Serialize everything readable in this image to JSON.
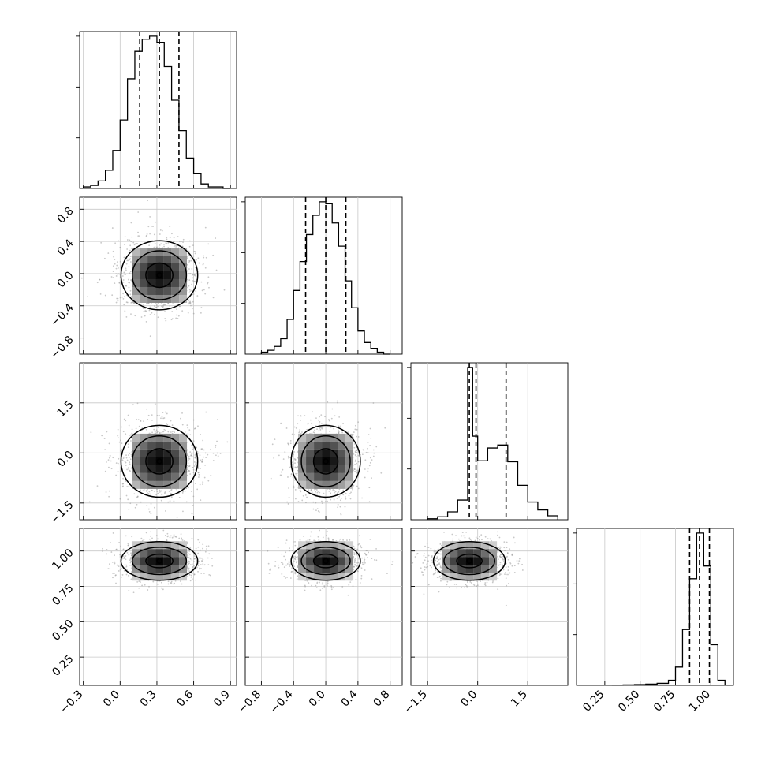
{
  "chart_data": {
    "type": "corner",
    "title": "",
    "grid": true,
    "parameters": [
      {
        "index": 0,
        "range": [
          -0.33,
          0.95
        ],
        "ticks": [
          -0.3,
          0.0,
          0.3,
          0.6,
          0.9
        ],
        "tick_labels": [
          "−0.3",
          "0.0",
          "0.3",
          "0.6",
          "0.9"
        ],
        "quantiles": [
          0.16,
          0.32,
          0.48
        ],
        "hist": {
          "edges": [
            -0.3,
            -0.24,
            -0.18,
            -0.12,
            -0.06,
            0.0,
            0.06,
            0.12,
            0.18,
            0.24,
            0.3,
            0.36,
            0.42,
            0.48,
            0.54,
            0.6,
            0.66,
            0.72,
            0.78,
            0.84,
            0.9
          ],
          "counts": [
            1,
            2,
            5,
            12,
            25,
            45,
            72,
            90,
            98,
            100,
            96,
            80,
            58,
            38,
            20,
            10,
            3,
            1,
            1,
            0
          ]
        }
      },
      {
        "index": 1,
        "range": [
          -1.0,
          0.95
        ],
        "ticks": [
          -0.8,
          -0.4,
          0.0,
          0.4,
          0.8
        ],
        "tick_labels": [
          "−0.8",
          "−0.4",
          "0.0",
          "0.4",
          "0.8"
        ],
        "quantiles": [
          -0.25,
          0.0,
          0.25
        ],
        "hist": {
          "edges": [
            -0.8,
            -0.72,
            -0.64,
            -0.56,
            -0.48,
            -0.4,
            -0.32,
            -0.24,
            -0.16,
            -0.08,
            0.0,
            0.08,
            0.16,
            0.24,
            0.32,
            0.4,
            0.48,
            0.56,
            0.64,
            0.72,
            0.8
          ],
          "counts": [
            1,
            2,
            4,
            8,
            18,
            33,
            48,
            62,
            72,
            79,
            78,
            68,
            56,
            38,
            24,
            12,
            6,
            3,
            1,
            0
          ]
        }
      },
      {
        "index": 2,
        "range": [
          -2.0,
          2.7
        ],
        "ticks": [
          -1.5,
          0.0,
          1.5
        ],
        "tick_labels": [
          "−1.5",
          "0.0",
          "1.5"
        ],
        "quantiles": [
          -0.25,
          -0.05,
          0.85
        ],
        "hist": {
          "edges": [
            -1.5,
            -1.2,
            -0.9,
            -0.6,
            -0.3,
            -0.15,
            0.0,
            0.3,
            0.6,
            0.9,
            1.2,
            1.5,
            1.8,
            2.1,
            2.4
          ],
          "counts": [
            1,
            3,
            8,
            20,
            155,
            85,
            60,
            73,
            76,
            59,
            35,
            18,
            10,
            4
          ]
        }
      },
      {
        "index": 3,
        "range": [
          0.05,
          1.16
        ],
        "ticks": [
          0.25,
          0.5,
          0.75,
          1.0
        ],
        "tick_labels": [
          "0.25",
          "0.50",
          "0.75",
          "1.00"
        ],
        "quantiles": [
          0.85,
          0.92,
          0.99
        ],
        "hist": {
          "edges": [
            0.3,
            0.38,
            0.46,
            0.54,
            0.62,
            0.7,
            0.75,
            0.8,
            0.85,
            0.9,
            0.95,
            1.0,
            1.05,
            1.1
          ],
          "counts": [
            0.5,
            1,
            1.5,
            2.5,
            4,
            10,
            36,
            110,
            210,
            300,
            235,
            80,
            10
          ]
        }
      }
    ],
    "pairs": [
      {
        "row": 1,
        "col": 0,
        "peak": [
          0.32,
          -0.02
        ],
        "sigma": [
          0.16,
          0.22
        ],
        "contour_radii": [
          0.05,
          0.3,
          0.6,
          0.85
        ]
      },
      {
        "row": 2,
        "col": 0,
        "peak": [
          0.32,
          -0.25
        ],
        "sigma": [
          0.16,
          0.55
        ],
        "contour_radii": [
          0.05,
          0.3,
          0.6,
          0.85
        ]
      },
      {
        "row": 2,
        "col": 1,
        "peak": [
          0.0,
          -0.25
        ],
        "sigma": [
          0.22,
          0.55
        ],
        "contour_radii": [
          0.05,
          0.3,
          0.6,
          0.85
        ]
      },
      {
        "row": 3,
        "col": 0,
        "peak": [
          0.32,
          0.93
        ],
        "sigma": [
          0.16,
          0.07
        ],
        "contour_radii": [
          0.05,
          0.3,
          0.6,
          0.85
        ]
      },
      {
        "row": 3,
        "col": 1,
        "peak": [
          0.0,
          0.93
        ],
        "sigma": [
          0.22,
          0.07
        ],
        "contour_radii": [
          0.05,
          0.3,
          0.6,
          0.85
        ]
      },
      {
        "row": 3,
        "col": 2,
        "peak": [
          -0.25,
          0.93
        ],
        "sigma": [
          0.55,
          0.07
        ],
        "contour_radii": [
          0.05,
          0.3,
          0.6,
          0.85
        ]
      }
    ]
  }
}
